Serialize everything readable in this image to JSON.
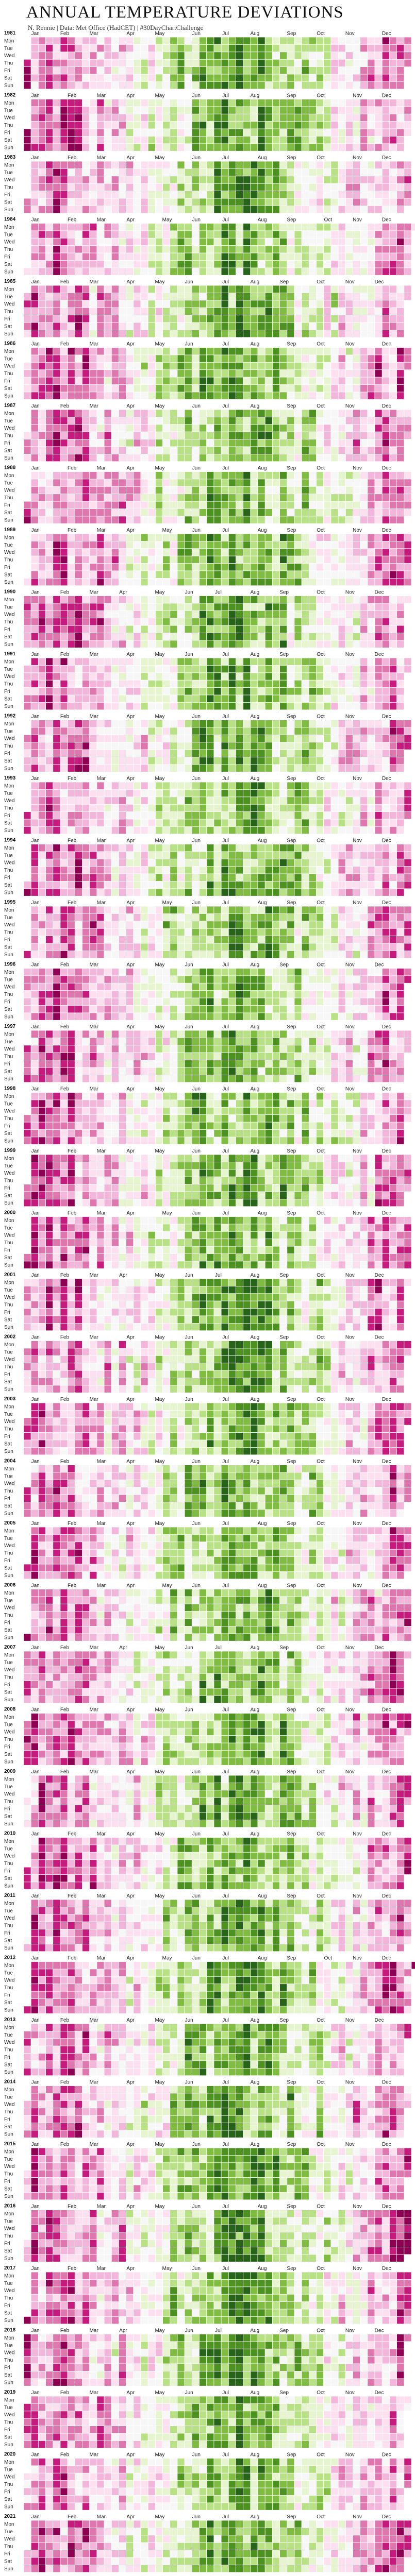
{
  "chart_data": {
    "type": "heatmap",
    "title": "ANNUAL TEMPERATURE DEVIATIONS",
    "subtitle": "N. Rennie | Data: Met Office (HadCET) | #30DayChartChallenge",
    "day_labels": [
      "Mon",
      "Tue",
      "Wed",
      "Thu",
      "Fri",
      "Sat",
      "Sun"
    ],
    "month_labels": [
      "Jan",
      "Feb",
      "Mar",
      "Apr",
      "May",
      "Jun",
      "Jul",
      "Aug",
      "Sep",
      "Oct",
      "Nov",
      "Dec"
    ],
    "years": [
      1981,
      1982,
      1983,
      1984,
      1985,
      1986,
      1987,
      1988,
      1989,
      1990,
      1991,
      1992,
      1993,
      1994,
      1995,
      1996,
      1997,
      1998,
      1999,
      2000,
      2001,
      2002,
      2003,
      2004,
      2005,
      2006,
      2007,
      2008,
      2009,
      2010,
      2011,
      2012,
      2013,
      2014,
      2015,
      2016,
      2017,
      2018,
      2019,
      2020,
      2021
    ],
    "cell_value": "daily deviation from the annual mean temperature, one cell per day, columns are weeks",
    "encoding": "values are a relative scale from -1 (coldest, magenta) through 0 (white) to +1 (warmest, green)",
    "color_scale": {
      "cold": "#c51b7d",
      "mid": "#f7f7f7",
      "warm": "#4d9221"
    },
    "colormap": [
      "#8e0152",
      "#c51b7d",
      "#de77ae",
      "#f1b6da",
      "#fde0ef",
      "#f7f7f7",
      "#e6f5d0",
      "#b8e186",
      "#7fbc41",
      "#4d9221",
      "#276419"
    ],
    "seasonal_profile": {
      "weeks": [
        1,
        6,
        10,
        14,
        18,
        22,
        26,
        30,
        34,
        38,
        42,
        46,
        50,
        53
      ],
      "values": [
        -0.55,
        -0.55,
        -0.4,
        -0.2,
        0.05,
        0.35,
        0.55,
        0.65,
        0.55,
        0.35,
        0.1,
        -0.2,
        -0.45,
        -0.55
      ]
    }
  }
}
